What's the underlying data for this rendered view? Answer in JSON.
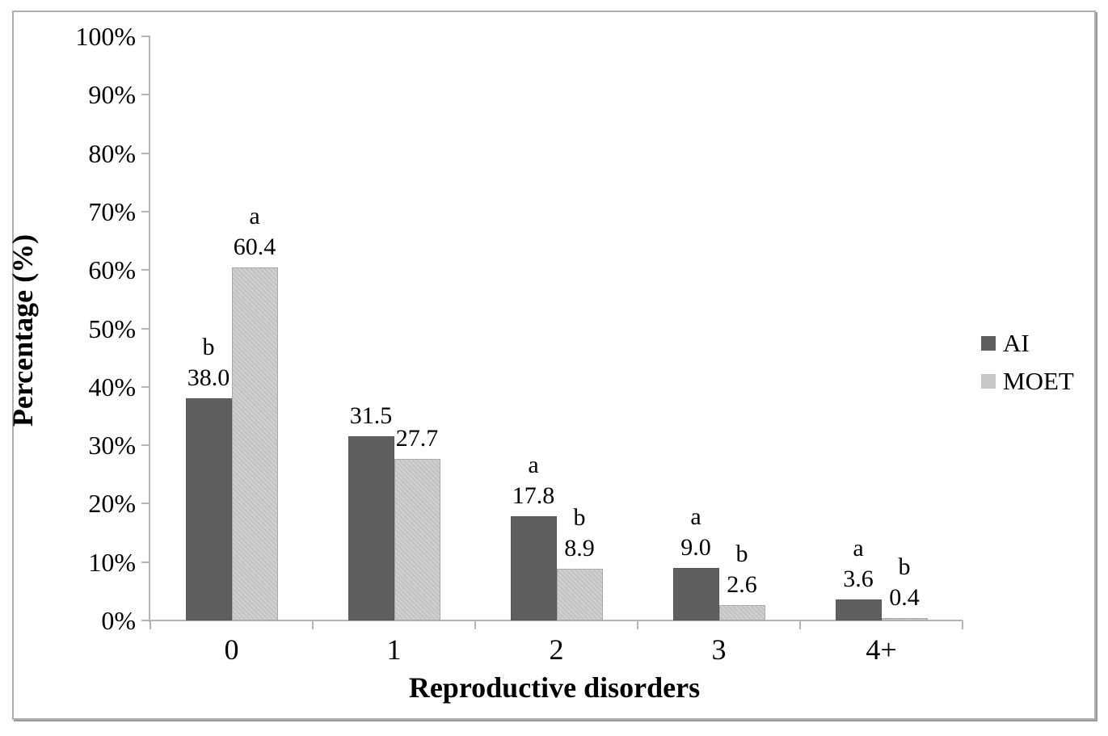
{
  "figure": {
    "background": "#ffffff",
    "border_color": "#b0b0b0"
  },
  "chart_data": {
    "type": "bar",
    "title": "",
    "xlabel": "Reproductive disorders",
    "ylabel": "Percentage (%)",
    "categories": [
      "0",
      "1",
      "2",
      "3",
      "4+"
    ],
    "series": [
      {
        "name": "AI",
        "color": "#5f5f5f",
        "values": [
          38.0,
          31.5,
          17.8,
          9.0,
          3.6
        ],
        "value_labels": [
          "38.0",
          "31.5",
          "17.8",
          "9.0",
          "3.6"
        ],
        "sig_letters": [
          "b",
          "",
          "a",
          "a",
          "a"
        ]
      },
      {
        "name": "MOET",
        "color": "#c7c7c7",
        "values": [
          60.4,
          27.7,
          8.9,
          2.6,
          0.4
        ],
        "value_labels": [
          "60.4",
          "27.7",
          "8.9",
          "2.6",
          "0.4"
        ],
        "sig_letters": [
          "a",
          "",
          "b",
          "b",
          "b"
        ]
      }
    ],
    "ylim": [
      0,
      100
    ],
    "ytick_step": 10,
    "ytick_labels": [
      "0%",
      "10%",
      "20%",
      "30%",
      "40%",
      "50%",
      "60%",
      "70%",
      "80%",
      "90%",
      "100%"
    ],
    "grid": false,
    "legend_position": "right",
    "axis_color": "#b5b5b5",
    "text_color": "#000000"
  }
}
